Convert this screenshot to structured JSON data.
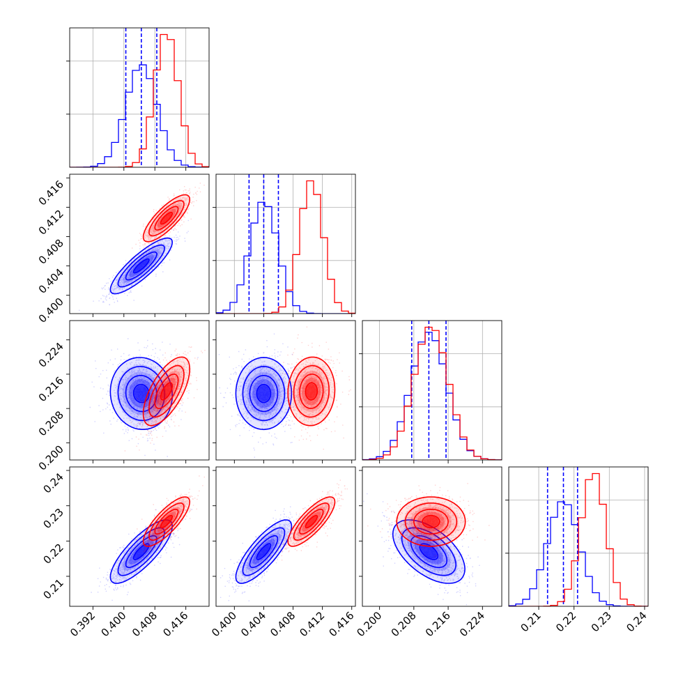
{
  "chart_data": {
    "type": "corner",
    "title": "",
    "params": [
      {
        "range": [
          0.386,
          0.422
        ],
        "ticks": [
          0.392,
          0.4,
          0.408,
          0.416
        ],
        "tick_labels": [
          "0.392",
          "0.400",
          "0.408",
          "0.416"
        ]
      },
      {
        "range": [
          0.3975,
          0.4165
        ],
        "ticks": [
          0.4,
          0.404,
          0.408,
          0.412,
          0.416
        ],
        "tick_labels": [
          "0.400",
          "0.404",
          "0.408",
          "0.412",
          "0.416"
        ]
      },
      {
        "range": [
          0.196,
          0.2285
        ],
        "ticks": [
          0.2,
          0.208,
          0.216,
          0.224
        ],
        "tick_labels": [
          "0.200",
          "0.208",
          "0.216",
          "0.224"
        ]
      },
      {
        "range": [
          0.2015,
          0.241
        ],
        "ticks": [
          0.21,
          0.22,
          0.23,
          0.24
        ],
        "tick_labels": [
          "0.21",
          "0.22",
          "0.23",
          "0.24"
        ]
      }
    ],
    "series": [
      {
        "color": "#0000ff",
        "mean": [
          0.4045,
          0.404,
          0.2115,
          0.217
        ],
        "sigma": [
          0.004,
          0.0019,
          0.0042,
          0.0045
        ],
        "corr": [
          [
            1,
            0.85,
            -0.05,
            0.8
          ],
          [
            0.85,
            1,
            0.0,
            0.8
          ],
          [
            -0.05,
            0.0,
            1,
            -0.55
          ],
          [
            0.8,
            0.8,
            -0.55,
            1
          ]
        ],
        "quantiles": [
          [
            0.4005,
            0.4045,
            0.4085
          ],
          [
            0.402,
            0.404,
            0.406
          ],
          [
            0.2075,
            0.2115,
            0.2155
          ],
          [
            0.2125,
            0.217,
            0.221
          ]
        ]
      },
      {
        "color": "#ff0000",
        "mean": [
          0.411,
          0.4105,
          0.212,
          0.2255
        ],
        "sigma": [
          0.003,
          0.0016,
          0.004,
          0.0035
        ],
        "corr": [
          [
            1,
            0.8,
            0.65,
            0.8
          ],
          [
            0.8,
            1,
            0.05,
            0.8
          ],
          [
            0.65,
            0.05,
            1,
            0.0
          ],
          [
            0.8,
            0.8,
            0.0,
            1
          ]
        ],
        "quantiles": []
      }
    ],
    "grid": true,
    "legend": "none"
  }
}
